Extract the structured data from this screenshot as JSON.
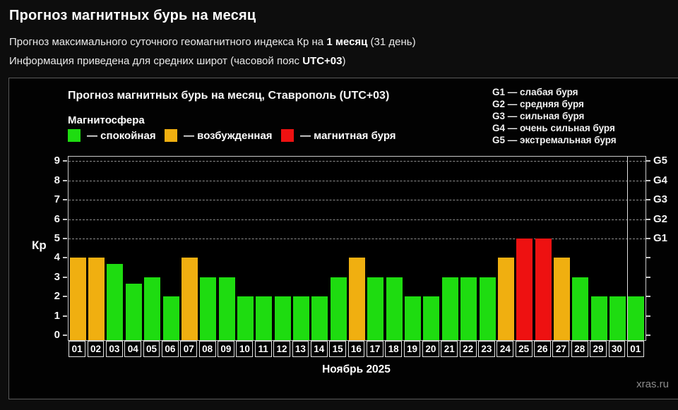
{
  "page": {
    "title": "Прогноз магнитных бурь на месяц",
    "subtitle1": {
      "prefix": "Прогноз максимального суточного геомагнитного индекса Кр на ",
      "bold": "1 месяц",
      "suffix": " (31 день)"
    },
    "subtitle2": {
      "prefix": "Информация приведена для средних широт (часовой пояс ",
      "bold": "UTC+03",
      "suffix": ")"
    },
    "watermark": "xras.ru"
  },
  "chart_data": {
    "type": "bar",
    "title": "Прогноз магнитных бурь на месяц, Ставрополь (UTC+03)",
    "legend_title": "Магнитосфера",
    "legend": [
      {
        "key": "quiet",
        "label": "— спокойная",
        "color": "#1edc10"
      },
      {
        "key": "excited",
        "label": "— возбужденная",
        "color": "#f0af10"
      },
      {
        "key": "storm",
        "label": "— магнитная буря",
        "color": "#ee1111"
      }
    ],
    "g_legend": [
      "G1 — слабая буря",
      "G2 — средняя буря",
      "G3 — сильная буря",
      "G4 — очень сильная буря",
      "G5 — экстремальная буря"
    ],
    "g_axis": [
      {
        "label": "G1",
        "kp": 5
      },
      {
        "label": "G2",
        "kp": 6
      },
      {
        "label": "G3",
        "kp": 7
      },
      {
        "label": "G4",
        "kp": 8
      },
      {
        "label": "G5",
        "kp": 9
      }
    ],
    "ylabel": "Кр",
    "y_ticks": [
      0,
      1,
      2,
      3,
      4,
      5,
      6,
      7,
      8,
      9
    ],
    "ylim": [
      0,
      9.5
    ],
    "grid": "dashed horizontal lines at Kp 5-9",
    "legend_position": "top",
    "categories": [
      "01",
      "02",
      "03",
      "04",
      "05",
      "06",
      "07",
      "08",
      "09",
      "10",
      "11",
      "12",
      "13",
      "14",
      "15",
      "16",
      "17",
      "18",
      "19",
      "20",
      "21",
      "22",
      "23",
      "24",
      "25",
      "26",
      "27",
      "28",
      "29",
      "30",
      "01"
    ],
    "values": [
      4,
      4,
      3.67,
      2.67,
      3,
      2,
      4,
      3,
      3,
      2,
      2,
      2,
      2,
      2,
      3,
      4,
      3,
      3,
      2,
      2,
      3,
      3,
      3,
      4,
      5,
      5,
      4,
      3,
      2,
      2,
      2
    ],
    "statuses": [
      "excited",
      "excited",
      "quiet",
      "quiet",
      "quiet",
      "quiet",
      "excited",
      "quiet",
      "quiet",
      "quiet",
      "quiet",
      "quiet",
      "quiet",
      "quiet",
      "quiet",
      "excited",
      "quiet",
      "quiet",
      "quiet",
      "quiet",
      "quiet",
      "quiet",
      "quiet",
      "excited",
      "storm",
      "storm",
      "excited",
      "quiet",
      "quiet",
      "quiet",
      "quiet"
    ],
    "xlabel": "Ноябрь 2025",
    "month_separator_before_index": 30
  }
}
